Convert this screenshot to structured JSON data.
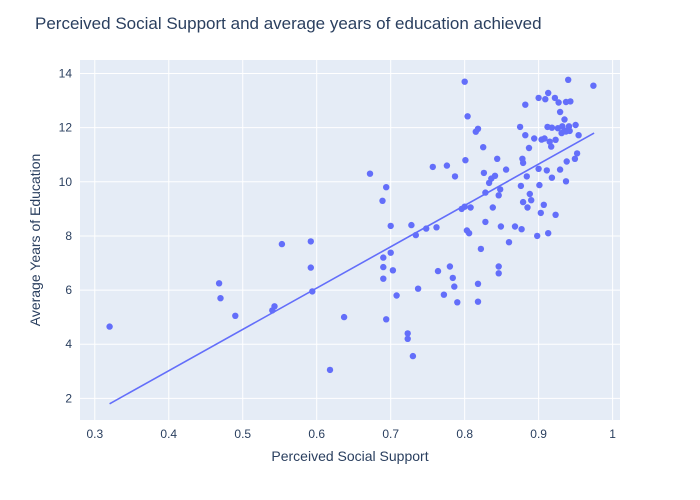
{
  "chart_data": {
    "type": "scatter",
    "title": "Perceived Social Support and average years of education achieved",
    "xlabel": "Perceived Social Support",
    "ylabel": "Average Years of Education",
    "xlim": [
      0.28,
      1.01
    ],
    "ylim": [
      1.2,
      14.5
    ],
    "xticks": [
      0.3,
      0.4,
      0.5,
      0.6,
      0.7,
      0.8,
      0.9,
      1
    ],
    "xtick_labels": [
      "0.3",
      "0.4",
      "0.5",
      "0.6",
      "0.7",
      "0.8",
      "0.9",
      "1"
    ],
    "yticks": [
      2,
      4,
      6,
      8,
      10,
      12,
      14
    ],
    "ytick_labels": [
      "2",
      "4",
      "6",
      "8",
      "10",
      "12",
      "14"
    ],
    "grid": true,
    "colors": {
      "plot_bg": "#e5ecf6",
      "marker": "#636efa",
      "line": "#636efa",
      "text": "#2a3f5f"
    },
    "series": [
      {
        "kind": "scatter",
        "points": [
          [
            0.32,
            4.65
          ],
          [
            0.468,
            6.25
          ],
          [
            0.47,
            5.7
          ],
          [
            0.49,
            5.05
          ],
          [
            0.54,
            5.25
          ],
          [
            0.543,
            5.4
          ],
          [
            0.553,
            7.7
          ],
          [
            0.592,
            7.8
          ],
          [
            0.592,
            6.83
          ],
          [
            0.594,
            5.95
          ],
          [
            0.618,
            3.05
          ],
          [
            0.637,
            5.0
          ],
          [
            0.672,
            10.3
          ],
          [
            0.689,
            9.3
          ],
          [
            0.69,
            7.2
          ],
          [
            0.69,
            6.85
          ],
          [
            0.69,
            6.42
          ],
          [
            0.694,
            9.8
          ],
          [
            0.694,
            4.92
          ],
          [
            0.7,
            8.37
          ],
          [
            0.7,
            7.38
          ],
          [
            0.703,
            6.73
          ],
          [
            0.708,
            5.8
          ],
          [
            0.723,
            4.4
          ],
          [
            0.723,
            4.2
          ],
          [
            0.728,
            8.4
          ],
          [
            0.73,
            3.56
          ],
          [
            0.734,
            8.03
          ],
          [
            0.737,
            6.05
          ],
          [
            0.748,
            8.27
          ],
          [
            0.757,
            10.55
          ],
          [
            0.762,
            8.32
          ],
          [
            0.764,
            6.7
          ],
          [
            0.772,
            5.83
          ],
          [
            0.776,
            10.6
          ],
          [
            0.78,
            6.87
          ],
          [
            0.784,
            6.45
          ],
          [
            0.786,
            6.13
          ],
          [
            0.787,
            10.2
          ],
          [
            0.79,
            5.55
          ],
          [
            0.796,
            9.0
          ],
          [
            0.8,
            13.7
          ],
          [
            0.8,
            9.08
          ],
          [
            0.801,
            10.8
          ],
          [
            0.803,
            8.2
          ],
          [
            0.804,
            12.42
          ],
          [
            0.806,
            8.1
          ],
          [
            0.808,
            9.05
          ],
          [
            0.815,
            11.85
          ],
          [
            0.818,
            11.96
          ],
          [
            0.818,
            6.23
          ],
          [
            0.818,
            5.57
          ],
          [
            0.822,
            7.52
          ],
          [
            0.825,
            11.28
          ],
          [
            0.826,
            10.33
          ],
          [
            0.828,
            9.6
          ],
          [
            0.828,
            8.52
          ],
          [
            0.833,
            9.96
          ],
          [
            0.836,
            10.12
          ],
          [
            0.838,
            9.05
          ],
          [
            0.841,
            10.22
          ],
          [
            0.844,
            10.85
          ],
          [
            0.846,
            9.5
          ],
          [
            0.846,
            6.87
          ],
          [
            0.846,
            6.62
          ],
          [
            0.848,
            9.72
          ],
          [
            0.849,
            8.35
          ],
          [
            0.856,
            10.45
          ],
          [
            0.86,
            7.77
          ],
          [
            0.868,
            8.35
          ],
          [
            0.875,
            12.03
          ],
          [
            0.876,
            9.85
          ],
          [
            0.877,
            8.25
          ],
          [
            0.878,
            10.85
          ],
          [
            0.879,
            10.7
          ],
          [
            0.879,
            9.25
          ],
          [
            0.882,
            11.72
          ],
          [
            0.882,
            12.85
          ],
          [
            0.884,
            10.2
          ],
          [
            0.885,
            9.05
          ],
          [
            0.887,
            11.25
          ],
          [
            0.888,
            9.55
          ],
          [
            0.89,
            9.32
          ],
          [
            0.894,
            11.6
          ],
          [
            0.898,
            8.0
          ],
          [
            0.9,
            10.48
          ],
          [
            0.9,
            13.1
          ],
          [
            0.901,
            9.88
          ],
          [
            0.903,
            8.85
          ],
          [
            0.904,
            11.56
          ],
          [
            0.907,
            9.15
          ],
          [
            0.908,
            11.6
          ],
          [
            0.909,
            13.05
          ],
          [
            0.911,
            10.42
          ],
          [
            0.912,
            12.03
          ],
          [
            0.913,
            8.1
          ],
          [
            0.913,
            13.28
          ],
          [
            0.915,
            11.48
          ],
          [
            0.917,
            11.3
          ],
          [
            0.918,
            12.0
          ],
          [
            0.918,
            10.15
          ],
          [
            0.922,
            13.1
          ],
          [
            0.923,
            11.55
          ],
          [
            0.923,
            8.78
          ],
          [
            0.926,
            11.98
          ],
          [
            0.927,
            12.93
          ],
          [
            0.929,
            12.58
          ],
          [
            0.929,
            10.45
          ],
          [
            0.931,
            11.8
          ],
          [
            0.932,
            12.05
          ],
          [
            0.935,
            11.9
          ],
          [
            0.935,
            12.3
          ],
          [
            0.937,
            12.95
          ],
          [
            0.937,
            11.86
          ],
          [
            0.937,
            10.02
          ],
          [
            0.938,
            10.75
          ],
          [
            0.94,
            13.77
          ],
          [
            0.941,
            12.05
          ],
          [
            0.942,
            11.88
          ],
          [
            0.943,
            12.97
          ],
          [
            0.949,
            10.85
          ],
          [
            0.95,
            12.1
          ],
          [
            0.952,
            11.05
          ],
          [
            0.954,
            11.72
          ],
          [
            0.974,
            13.55
          ]
        ]
      },
      {
        "kind": "line",
        "points": [
          [
            0.32,
            1.8
          ],
          [
            0.975,
            11.8
          ]
        ]
      }
    ]
  }
}
